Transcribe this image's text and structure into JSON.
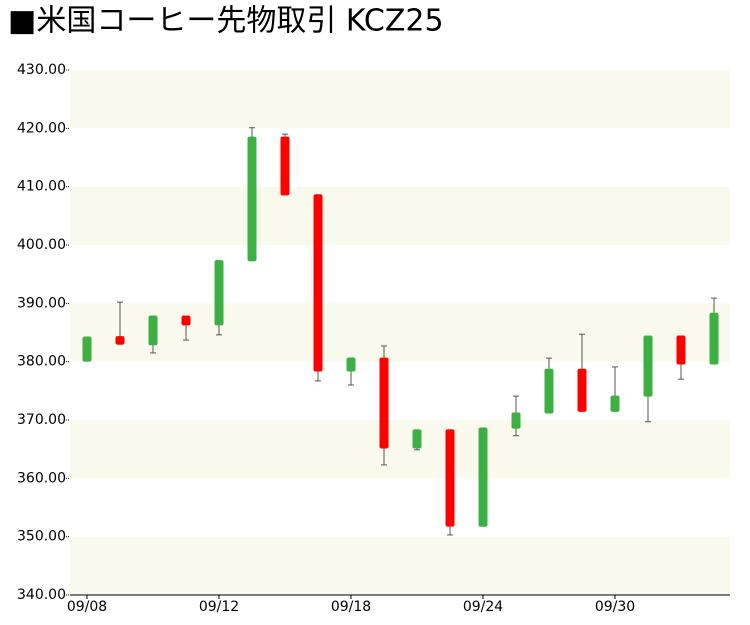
{
  "chart_data": {
    "type": "candlestick",
    "title": "■米国コーヒー先物取引  KCZ25",
    "categories": [
      "09/08",
      null,
      null,
      null,
      "09/12",
      null,
      null,
      null,
      "09/18",
      null,
      null,
      null,
      "09/24",
      null,
      null,
      null,
      "09/30",
      null,
      null,
      null
    ],
    "open": [
      380.1,
      384.3,
      382.9,
      387.8,
      386.3,
      397.3,
      418.5,
      408.6,
      378.4,
      380.6,
      365.2,
      368.3,
      351.8,
      368.6,
      371.2,
      378.7,
      371.5,
      374.1,
      384.4,
      379.6
    ],
    "high": [
      384.2,
      390.2,
      387.8,
      387.8,
      397.3,
      420.1,
      419.0,
      408.6,
      380.6,
      382.7,
      368.3,
      368.3,
      368.6,
      374.1,
      380.6,
      384.7,
      379.1,
      384.4,
      384.4,
      390.9
    ],
    "low": [
      380.1,
      383.0,
      381.5,
      383.7,
      384.6,
      397.3,
      408.6,
      376.7,
      376.0,
      362.3,
      364.9,
      350.3,
      351.8,
      367.3,
      371.2,
      371.5,
      371.5,
      369.7,
      377.0,
      379.6
    ],
    "close": [
      384.2,
      383.0,
      387.8,
      386.3,
      397.3,
      418.5,
      408.6,
      378.4,
      380.6,
      365.2,
      368.3,
      351.8,
      368.6,
      371.2,
      378.7,
      371.5,
      374.1,
      384.4,
      379.6,
      388.3
    ],
    "up_color": "#3cb043",
    "down_color": "#ff0000",
    "ylim": [
      340,
      430
    ],
    "yticks": [
      {
        "value": 340,
        "label": "340.00"
      },
      {
        "value": 350,
        "label": "350.00"
      },
      {
        "value": 360,
        "label": "360.00"
      },
      {
        "value": 370,
        "label": "370.00"
      },
      {
        "value": 380,
        "label": "380.00"
      },
      {
        "value": 390,
        "label": "390.00"
      },
      {
        "value": 400,
        "label": "400.00"
      },
      {
        "value": 410,
        "label": "410.00"
      },
      {
        "value": 420,
        "label": "420.00"
      },
      {
        "value": 430,
        "label": "430.00"
      }
    ]
  }
}
